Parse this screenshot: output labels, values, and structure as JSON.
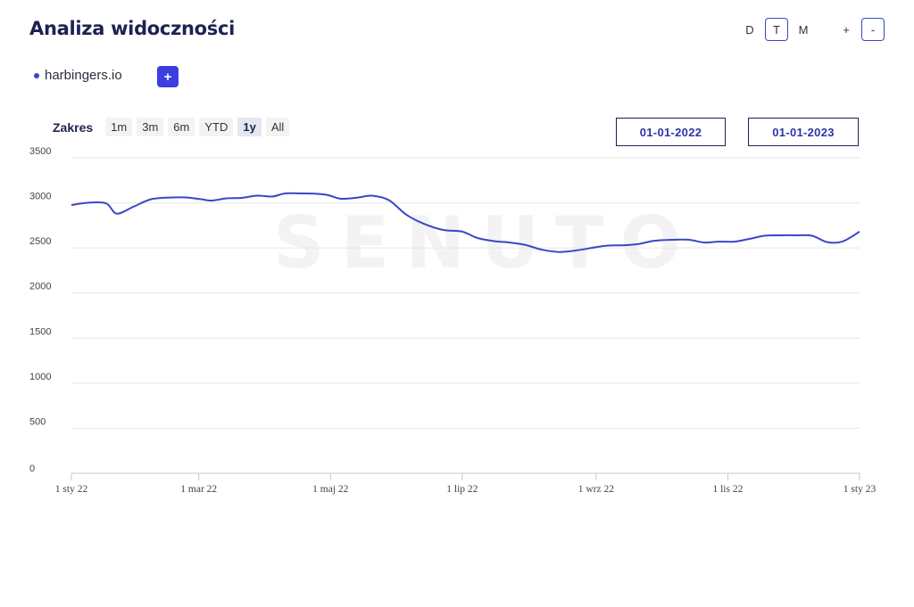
{
  "header": {
    "title": "Analiza widoczności",
    "granularity": [
      {
        "label": "D",
        "active": false
      },
      {
        "label": "T",
        "active": true
      },
      {
        "label": "M",
        "active": false
      }
    ],
    "zoom_in_label": "+",
    "zoom_out_label": "-"
  },
  "legend": {
    "domain": "harbingers.io",
    "color": "#3b46c4",
    "add_label": "+"
  },
  "range": {
    "label": "Zakres",
    "options": [
      "1m",
      "3m",
      "6m",
      "YTD",
      "1y",
      "All"
    ],
    "selected": "1y",
    "date_from": "01-01-2022",
    "date_to": "01-01-2023"
  },
  "watermark": "SENUTO",
  "chart_data": {
    "type": "line",
    "title": "",
    "xlabel": "",
    "ylabel": "",
    "ylim": [
      0,
      3500
    ],
    "yticks": [
      0,
      500,
      1000,
      1500,
      2000,
      2500,
      3000,
      3500
    ],
    "xlim": [
      "2022-01-01",
      "2023-01-01"
    ],
    "xtick_labels": [
      {
        "date": "2022-01-01",
        "label": "1 sty 22"
      },
      {
        "date": "2022-03-01",
        "label": "1 mar 22"
      },
      {
        "date": "2022-05-01",
        "label": "1 maj 22"
      },
      {
        "date": "2022-07-01",
        "label": "1 lip 22"
      },
      {
        "date": "2022-09-01",
        "label": "1 wrz 22"
      },
      {
        "date": "2022-11-01",
        "label": "1 lis 22"
      },
      {
        "date": "2023-01-01",
        "label": "1 sty 23"
      }
    ],
    "grid": true,
    "series": [
      {
        "name": "harbingers.io",
        "color": "#3b46c4",
        "x": [
          "2022-01-01",
          "2022-01-08",
          "2022-01-17",
          "2022-01-22",
          "2022-01-30",
          "2022-02-07",
          "2022-02-17",
          "2022-02-23",
          "2022-03-02",
          "2022-03-07",
          "2022-03-14",
          "2022-03-21",
          "2022-03-28",
          "2022-04-04",
          "2022-04-10",
          "2022-04-17",
          "2022-04-25",
          "2022-04-30",
          "2022-05-06",
          "2022-05-14",
          "2022-05-20",
          "2022-05-28",
          "2022-06-05",
          "2022-06-13",
          "2022-06-22",
          "2022-07-01",
          "2022-07-08",
          "2022-07-16",
          "2022-07-23",
          "2022-07-30",
          "2022-08-07",
          "2022-08-15",
          "2022-08-22",
          "2022-08-30",
          "2022-09-06",
          "2022-09-14",
          "2022-09-21",
          "2022-09-28",
          "2022-10-06",
          "2022-10-14",
          "2022-10-21",
          "2022-10-28",
          "2022-11-04",
          "2022-11-11",
          "2022-11-18",
          "2022-11-26",
          "2022-12-03",
          "2022-12-10",
          "2022-12-17",
          "2022-12-24",
          "2023-01-01"
        ],
        "values": [
          2975,
          3000,
          2995,
          2880,
          2960,
          3040,
          3060,
          3060,
          3040,
          3025,
          3050,
          3055,
          3080,
          3070,
          3105,
          3105,
          3100,
          3085,
          3045,
          3060,
          3080,
          3030,
          2870,
          2770,
          2700,
          2680,
          2610,
          2575,
          2560,
          2535,
          2480,
          2455,
          2470,
          2500,
          2525,
          2530,
          2545,
          2580,
          2590,
          2590,
          2560,
          2570,
          2570,
          2600,
          2635,
          2640,
          2640,
          2635,
          2565,
          2570,
          2680
        ]
      }
    ]
  }
}
